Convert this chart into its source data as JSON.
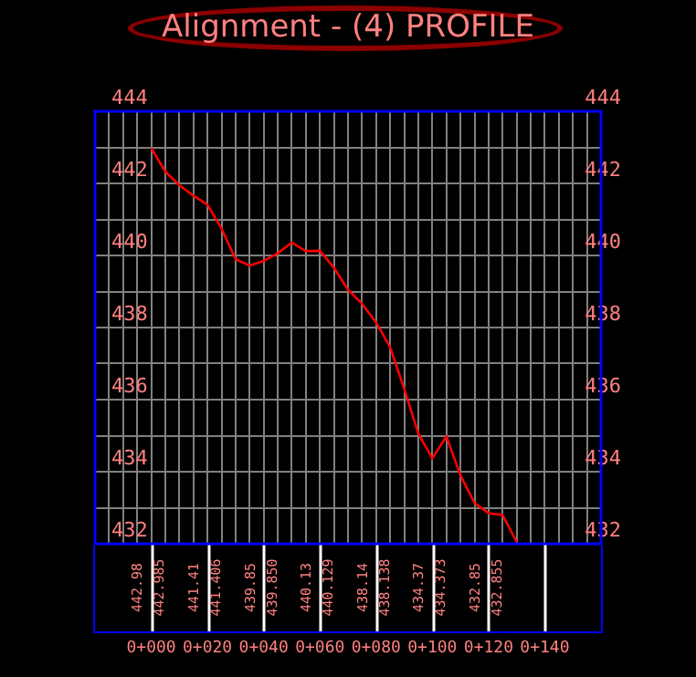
{
  "chart_data": {
    "type": "line",
    "title": "Alignment - (4) PROFILE",
    "categories": [
      null,
      null,
      null,
      null,
      "0+000",
      null,
      null,
      null,
      "0+020",
      null,
      null,
      null,
      "0+040",
      null,
      null,
      null,
      "0+060",
      null,
      null,
      null,
      "0+080",
      null,
      null,
      null,
      "0+100",
      null,
      null,
      null,
      "0+120",
      null,
      null,
      null,
      "0+140",
      null,
      null,
      null,
      null
    ],
    "series": [
      {
        "color": "#ff0000",
        "values": [
          null,
          null,
          null,
          null,
          442.98,
          442.33,
          441.95,
          441.66,
          441.41,
          440.75,
          439.9,
          439.72,
          439.85,
          440.06,
          440.36,
          440.12,
          440.13,
          439.66,
          439.05,
          438.66,
          438.14,
          437.45,
          436.3,
          435.06,
          434.37,
          434.98,
          433.9,
          433.13,
          432.85,
          432.8,
          432.05,
          null,
          null,
          null,
          null,
          null,
          null
        ]
      }
    ],
    "ylim": [
      432,
      444
    ],
    "yticks": [
      432,
      {
        "value": 433,
        "label": null
      },
      434,
      {
        "value": 435,
        "label": null
      },
      436,
      {
        "value": 437,
        "label": null
      },
      438,
      {
        "value": 439,
        "label": null
      },
      440,
      {
        "value": 441,
        "label": null
      },
      442,
      {
        "value": 443,
        "label": null
      },
      444
    ],
    "y2lim": [
      432,
      444
    ],
    "y2ticks": [
      432,
      {
        "value": 433,
        "label": null
      },
      434,
      {
        "value": 435,
        "label": null
      },
      436,
      {
        "value": 437,
        "label": null
      },
      438,
      {
        "value": 439,
        "label": null
      },
      440,
      {
        "value": 441,
        "label": null
      },
      442,
      {
        "value": 443,
        "label": null
      },
      444
    ],
    "grid": true,
    "legend": false,
    "marker": "none",
    "line_style": "solid",
    "annotations": [
      "442.98",
      "442.985",
      "441.41",
      "441.406",
      "439.85",
      "439.850",
      "440.13",
      "440.129",
      "438.14",
      "438.138",
      "434.37",
      "434.373",
      "432.85",
      "432.855"
    ]
  }
}
